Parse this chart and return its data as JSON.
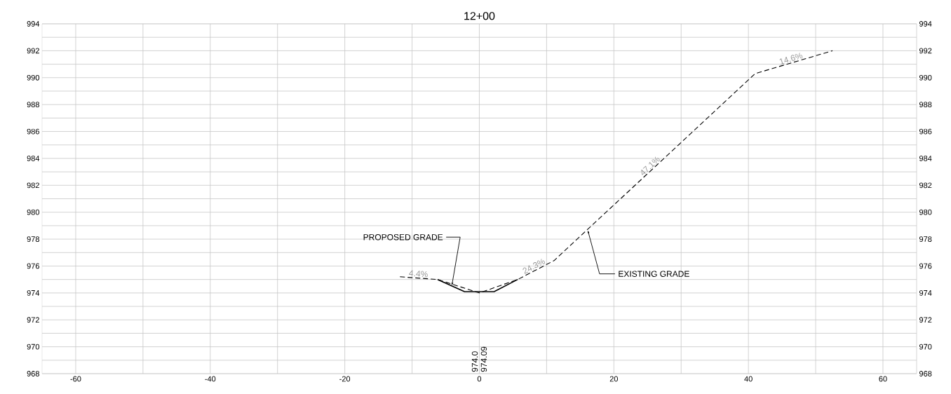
{
  "chart_data": {
    "type": "line",
    "title": "12+00",
    "series": [
      {
        "color": "#000000",
        "line_style": "dashed",
        "x": [
          -11.8,
          -6.2,
          0,
          5.7,
          11.1,
          41.0,
          52.5
        ],
        "values": [
          975.2,
          975.0,
          974.0,
          975.0,
          976.4,
          990.3,
          992.0
        ]
      },
      {
        "color": "#000000",
        "line_style": "solid",
        "x": [
          -6.2,
          -2.2,
          2.2,
          5.7
        ],
        "values": [
          975.0,
          974.1,
          974.1,
          975.0
        ]
      }
    ],
    "xlim": [
      -65,
      65
    ],
    "xticks": [
      -60,
      {
        "value": -50,
        "label": null
      },
      -40,
      {
        "value": -30,
        "label": null
      },
      -20,
      {
        "value": -10,
        "label": null
      },
      0,
      {
        "value": 10,
        "label": null
      },
      20,
      {
        "value": 30,
        "label": null
      },
      40,
      {
        "value": 50,
        "label": null
      },
      60
    ],
    "ylim": [
      968,
      994
    ],
    "yticks": [
      968,
      {
        "value": 969,
        "label": null
      },
      970,
      {
        "value": 971,
        "label": null
      },
      972,
      {
        "value": 973,
        "label": null
      },
      974,
      {
        "value": 975,
        "label": null
      },
      976,
      {
        "value": 977,
        "label": null
      },
      978,
      {
        "value": 979,
        "label": null
      },
      980,
      {
        "value": 981,
        "label": null
      },
      982,
      {
        "value": 983,
        "label": null
      },
      984,
      {
        "value": 985,
        "label": null
      },
      986,
      {
        "value": 987,
        "label": null
      },
      988,
      {
        "value": 989,
        "label": null
      },
      990,
      {
        "value": 991,
        "label": null
      },
      992,
      {
        "value": 993,
        "label": null
      },
      994
    ],
    "y2lim": [
      968,
      994
    ],
    "y2ticks": [
      968,
      970,
      972,
      974,
      976,
      978,
      980,
      982,
      984,
      986,
      988,
      990,
      992,
      994
    ],
    "grid": true,
    "annotations": [
      {
        "text": "4.4%",
        "x": -9.1,
        "y": 975.1
      },
      {
        "text": "24.3%",
        "x": 8.4,
        "y": 975.7
      },
      {
        "text": "47.1%",
        "x": 25.8,
        "y": 983.2
      },
      {
        "text": "14.6%",
        "x": 46.5,
        "y": 991.1
      },
      "974.0",
      "974.09",
      {
        "text": "PROPOSED GRADE",
        "x": -4.1,
        "y": 974.5
      },
      {
        "text": "EXISTING GRADE",
        "x": 16.1,
        "y": 978.7
      }
    ]
  }
}
